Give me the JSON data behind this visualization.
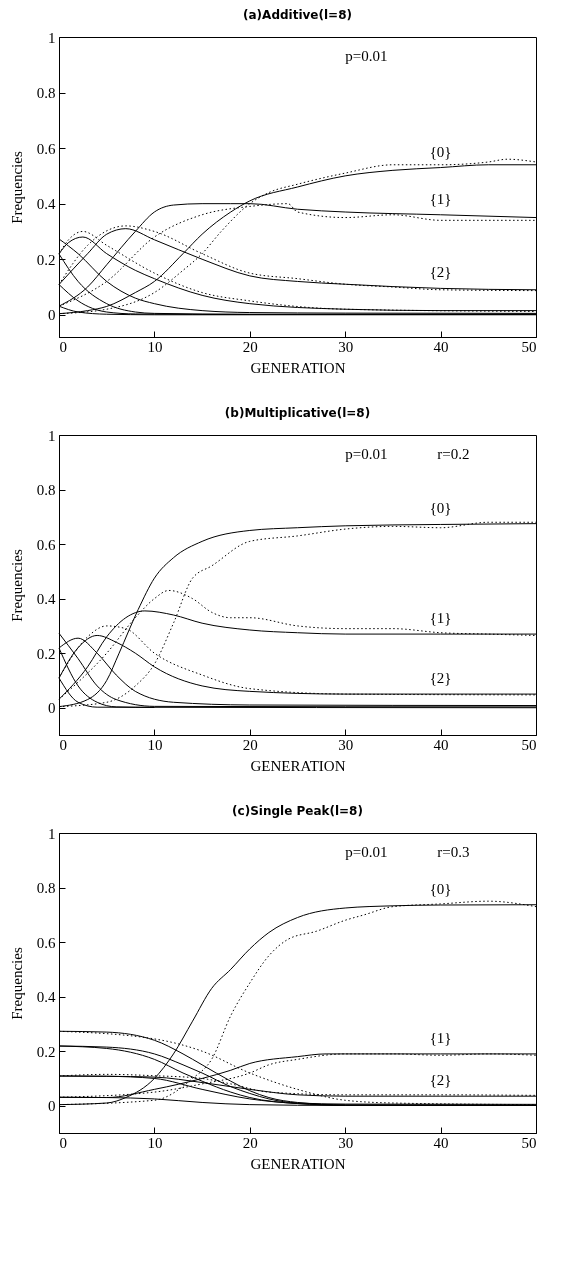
{
  "chart_data": [
    {
      "type": "line",
      "title": "(a)Additive(l=8)",
      "xlabel": "GENERATION",
      "ylabel": "Frequencies",
      "xlim": [
        0,
        50
      ],
      "ylim": [
        -0.08,
        1
      ],
      "xticks": [
        0,
        10,
        20,
        30,
        40,
        50
      ],
      "yticks": [
        0,
        0.2,
        0.4,
        0.6,
        0.8,
        1
      ],
      "grid": false,
      "legend": false,
      "annotations": [
        "p=0.01"
      ],
      "series": [
        {
          "name": "{0}",
          "color": "#000000",
          "line_style": "solid",
          "x": [
            0,
            3,
            5,
            8,
            10,
            13,
            15,
            18,
            20,
            25,
            30,
            35,
            40,
            45,
            50
          ],
          "values": [
            0.004,
            0.015,
            0.03,
            0.08,
            0.12,
            0.22,
            0.29,
            0.37,
            0.41,
            0.46,
            0.5,
            0.52,
            0.53,
            0.54,
            0.54
          ]
        },
        {
          "name": "{1}",
          "color": "#000000",
          "line_style": "solid",
          "x": [
            0,
            3,
            5,
            8,
            10,
            12,
            15,
            18,
            20,
            25,
            30,
            40,
            50
          ],
          "values": [
            0.031,
            0.1,
            0.18,
            0.3,
            0.37,
            0.395,
            0.4,
            0.4,
            0.4,
            0.38,
            0.37,
            0.36,
            0.35
          ]
        },
        {
          "name": "{2}",
          "color": "#000000",
          "line_style": "solid",
          "x": [
            0,
            3,
            5,
            7,
            10,
            15,
            20,
            25,
            30,
            40,
            50
          ],
          "values": [
            0.109,
            0.22,
            0.29,
            0.31,
            0.27,
            0.2,
            0.14,
            0.12,
            0.11,
            0.095,
            0.09
          ]
        },
        {
          "color": "#000000",
          "line_style": "solid",
          "x": [
            0,
            1,
            2.5,
            5,
            8,
            10,
            15,
            20,
            30,
            40,
            50
          ],
          "values": [
            0.219,
            0.26,
            0.28,
            0.22,
            0.16,
            0.13,
            0.07,
            0.04,
            0.02,
            0.015,
            0.015
          ]
        },
        {
          "color": "#000000",
          "line_style": "solid",
          "x": [
            0,
            2,
            5,
            8,
            10,
            15,
            20,
            30,
            50
          ],
          "values": [
            0.273,
            0.22,
            0.12,
            0.06,
            0.04,
            0.015,
            0.008,
            0.006,
            0.005
          ]
        },
        {
          "color": "#000000",
          "line_style": "solid",
          "x": [
            0,
            2,
            5,
            8,
            10,
            20,
            50
          ],
          "values": [
            0.219,
            0.12,
            0.04,
            0.01,
            0.005,
            0.002,
            0.002
          ]
        },
        {
          "color": "#000000",
          "line_style": "solid",
          "x": [
            0,
            2,
            5,
            8,
            20,
            50
          ],
          "values": [
            0.109,
            0.05,
            0.01,
            0.003,
            0.001,
            0.001
          ]
        },
        {
          "color": "#000000",
          "line_style": "solid",
          "x": [
            0,
            2,
            5,
            10,
            50
          ],
          "values": [
            0.031,
            0.01,
            0.002,
            0,
            0
          ]
        },
        {
          "color": "#000000",
          "line_style": "dotted",
          "x": [
            0,
            5,
            10,
            13,
            15,
            17,
            20,
            22,
            25,
            30,
            35,
            40,
            45,
            47,
            50
          ],
          "values": [
            0.004,
            0.02,
            0.08,
            0.16,
            0.22,
            0.3,
            0.4,
            0.44,
            0.47,
            0.51,
            0.54,
            0.54,
            0.55,
            0.56,
            0.55
          ]
        },
        {
          "color": "#000000",
          "line_style": "dotted",
          "x": [
            0,
            5,
            10,
            15,
            20,
            24,
            25,
            30,
            35,
            40,
            45,
            50
          ],
          "values": [
            0.031,
            0.12,
            0.28,
            0.36,
            0.39,
            0.4,
            0.37,
            0.35,
            0.36,
            0.34,
            0.34,
            0.34
          ]
        },
        {
          "color": "#000000",
          "line_style": "dotted",
          "x": [
            0,
            3,
            7,
            10,
            15,
            20,
            25,
            30,
            35,
            40,
            50
          ],
          "values": [
            0.109,
            0.25,
            0.32,
            0.3,
            0.22,
            0.15,
            0.13,
            0.11,
            0.1,
            0.09,
            0.087
          ]
        },
        {
          "color": "#000000",
          "line_style": "dotted",
          "x": [
            0,
            1,
            2.5,
            5,
            10,
            15,
            20,
            30,
            50
          ],
          "values": [
            0.219,
            0.27,
            0.3,
            0.25,
            0.15,
            0.08,
            0.05,
            0.02,
            0.012
          ]
        }
      ]
    },
    {
      "type": "line",
      "title": "(b)Multiplicative(l=8)",
      "xlabel": "GENERATION",
      "ylabel": "Frequencies",
      "xlim": [
        0,
        50
      ],
      "ylim": [
        -0.1,
        1
      ],
      "xticks": [
        0,
        10,
        20,
        30,
        40,
        50
      ],
      "yticks": [
        0,
        0.2,
        0.4,
        0.6,
        0.8,
        1
      ],
      "grid": false,
      "legend": false,
      "annotations": [
        "p=0.01",
        "r=0.2"
      ],
      "series": [
        {
          "name": "{0}",
          "color": "#000000",
          "line_style": "solid",
          "x": [
            0,
            3,
            5,
            6.3,
            8.3,
            10,
            12,
            15,
            20,
            25,
            30,
            40,
            50
          ],
          "values": [
            0.004,
            0.03,
            0.1,
            0.2,
            0.36,
            0.475,
            0.55,
            0.61,
            0.65,
            0.66,
            0.667,
            0.672,
            0.675
          ]
        },
        {
          "name": "{1}",
          "color": "#000000",
          "line_style": "solid",
          "x": [
            0,
            3,
            5,
            7,
            9,
            12,
            15,
            20,
            25,
            30,
            40,
            50
          ],
          "values": [
            0.031,
            0.15,
            0.26,
            0.33,
            0.355,
            0.34,
            0.31,
            0.285,
            0.275,
            0.27,
            0.27,
            0.27
          ]
        },
        {
          "name": "{2}",
          "color": "#000000",
          "line_style": "solid",
          "x": [
            0,
            2,
            4,
            6,
            8,
            10,
            15,
            20,
            30,
            40,
            50
          ],
          "values": [
            0.109,
            0.22,
            0.265,
            0.24,
            0.2,
            0.15,
            0.08,
            0.06,
            0.05,
            0.05,
            0.05
          ]
        },
        {
          "color": "#000000",
          "line_style": "solid",
          "x": [
            0,
            2,
            4,
            6,
            8,
            12,
            20,
            50
          ],
          "values": [
            0.219,
            0.255,
            0.2,
            0.12,
            0.06,
            0.02,
            0.01,
            0.008
          ]
        },
        {
          "color": "#000000",
          "line_style": "solid",
          "x": [
            0,
            2,
            4,
            6,
            10,
            50
          ],
          "values": [
            0.273,
            0.18,
            0.08,
            0.03,
            0.005,
            0.003
          ]
        },
        {
          "color": "#000000",
          "line_style": "solid",
          "x": [
            0,
            2,
            4,
            6,
            10
          ],
          "values": [
            0.219,
            0.08,
            0.02,
            0.003,
            0.001
          ]
        },
        {
          "color": "#000000",
          "line_style": "solid",
          "x": [
            0,
            2,
            4,
            50
          ],
          "values": [
            0.109,
            0.02,
            0.002,
            0
          ]
        },
        {
          "color": "#000000",
          "line_style": "dotted",
          "x": [
            0,
            5,
            8,
            10,
            12,
            14,
            16,
            20,
            25,
            30,
            35,
            40,
            45,
            50
          ],
          "values": [
            0.004,
            0.02,
            0.08,
            0.16,
            0.31,
            0.475,
            0.52,
            0.61,
            0.63,
            0.655,
            0.665,
            0.66,
            0.68,
            0.68
          ]
        },
        {
          "color": "#000000",
          "line_style": "dotted",
          "x": [
            0,
            5,
            8,
            10,
            11.5,
            14,
            16,
            18,
            20,
            25,
            30,
            35,
            40,
            45,
            50
          ],
          "values": [
            0.031,
            0.2,
            0.33,
            0.4,
            0.43,
            0.4,
            0.35,
            0.33,
            0.33,
            0.3,
            0.29,
            0.29,
            0.275,
            0.27,
            0.265
          ]
        },
        {
          "color": "#000000",
          "line_style": "dotted",
          "x": [
            0,
            3,
            5,
            7,
            10,
            15,
            20,
            30,
            50
          ],
          "values": [
            0.109,
            0.26,
            0.3,
            0.29,
            0.2,
            0.12,
            0.07,
            0.05,
            0.047
          ]
        }
      ]
    },
    {
      "type": "line",
      "title": "(c)Single   Peak(l=8)",
      "xlabel": "GENERATION",
      "ylabel": "Frequencies",
      "xlim": [
        0,
        50
      ],
      "ylim": [
        -0.1,
        1
      ],
      "xticks": [
        0,
        10,
        20,
        30,
        40,
        50
      ],
      "yticks": [
        0,
        0.2,
        0.4,
        0.6,
        0.8,
        1
      ],
      "grid": false,
      "legend": false,
      "annotations": [
        "p=0.01",
        "r=0.3"
      ],
      "series": [
        {
          "name": "{0}",
          "color": "#000000",
          "line_style": "solid",
          "x": [
            0,
            5,
            7,
            10,
            12,
            14,
            16,
            18,
            20,
            22,
            25,
            30,
            35,
            40,
            50
          ],
          "values": [
            0.004,
            0.01,
            0.03,
            0.1,
            0.19,
            0.31,
            0.43,
            0.5,
            0.575,
            0.635,
            0.69,
            0.725,
            0.733,
            0.736,
            0.737
          ]
        },
        {
          "name": "{1}",
          "color": "#000000",
          "line_style": "solid",
          "x": [
            0,
            5,
            10,
            15,
            18,
            20,
            25,
            28,
            30,
            40,
            50
          ],
          "values": [
            0.031,
            0.03,
            0.06,
            0.1,
            0.13,
            0.155,
            0.18,
            0.19,
            0.19,
            0.19,
            0.19
          ]
        },
        {
          "name": "{2}",
          "color": "#000000",
          "line_style": "solid",
          "x": [
            0,
            5,
            10,
            15,
            20,
            25,
            30,
            40,
            50
          ],
          "values": [
            0.109,
            0.108,
            0.105,
            0.085,
            0.06,
            0.04,
            0.035,
            0.035,
            0.035
          ]
        },
        {
          "color": "#000000",
          "line_style": "solid",
          "x": [
            0,
            5,
            10,
            13,
            15,
            18,
            20,
            22,
            25,
            30,
            50
          ],
          "values": [
            0.219,
            0.215,
            0.19,
            0.15,
            0.12,
            0.07,
            0.045,
            0.025,
            0.01,
            0.006,
            0.005
          ]
        },
        {
          "color": "#000000",
          "line_style": "solid",
          "x": [
            0,
            5,
            10,
            13,
            15,
            18,
            20,
            22,
            25,
            30,
            50
          ],
          "values": [
            0.273,
            0.27,
            0.24,
            0.19,
            0.15,
            0.09,
            0.055,
            0.03,
            0.012,
            0.003,
            0.002
          ]
        },
        {
          "color": "#000000",
          "line_style": "solid",
          "x": [
            0,
            5,
            10,
            13,
            15,
            18,
            20,
            25,
            30
          ],
          "values": [
            0.219,
            0.21,
            0.17,
            0.12,
            0.09,
            0.05,
            0.03,
            0.008,
            0.002
          ]
        },
        {
          "color": "#000000",
          "line_style": "solid",
          "x": [
            0,
            5,
            10,
            15,
            20,
            25,
            30,
            50
          ],
          "values": [
            0.109,
            0.108,
            0.1,
            0.06,
            0.025,
            0.008,
            0.002,
            0.001
          ]
        },
        {
          "color": "#000000",
          "line_style": "solid",
          "x": [
            0,
            5,
            10,
            15,
            20,
            30,
            50
          ],
          "values": [
            0.031,
            0.03,
            0.025,
            0.012,
            0.004,
            0.001,
            0.001
          ]
        },
        {
          "color": "#000000",
          "line_style": "dotted",
          "x": [
            0,
            10,
            14,
            16,
            18,
            20,
            22,
            24,
            27,
            30,
            32,
            35,
            40,
            45,
            50
          ],
          "values": [
            0.004,
            0.02,
            0.1,
            0.17,
            0.33,
            0.45,
            0.55,
            0.61,
            0.64,
            0.68,
            0.7,
            0.73,
            0.74,
            0.75,
            0.73
          ]
        },
        {
          "color": "#000000",
          "line_style": "dotted",
          "x": [
            0,
            10,
            15,
            20,
            22,
            25,
            30,
            35,
            40,
            45,
            50
          ],
          "values": [
            0.031,
            0.05,
            0.08,
            0.12,
            0.15,
            0.17,
            0.19,
            0.19,
            0.185,
            0.19,
            0.185
          ]
        },
        {
          "color": "#000000",
          "line_style": "dotted",
          "x": [
            0,
            5,
            10,
            15,
            18,
            22,
            30,
            40,
            50
          ],
          "values": [
            0.109,
            0.115,
            0.11,
            0.1,
            0.08,
            0.05,
            0.04,
            0.04,
            0.038
          ]
        },
        {
          "color": "#000000",
          "line_style": "dotted",
          "x": [
            0,
            10,
            15,
            20,
            25,
            30,
            35,
            50
          ],
          "values": [
            0.273,
            0.245,
            0.2,
            0.12,
            0.06,
            0.02,
            0.01,
            0.004
          ]
        }
      ]
    }
  ]
}
